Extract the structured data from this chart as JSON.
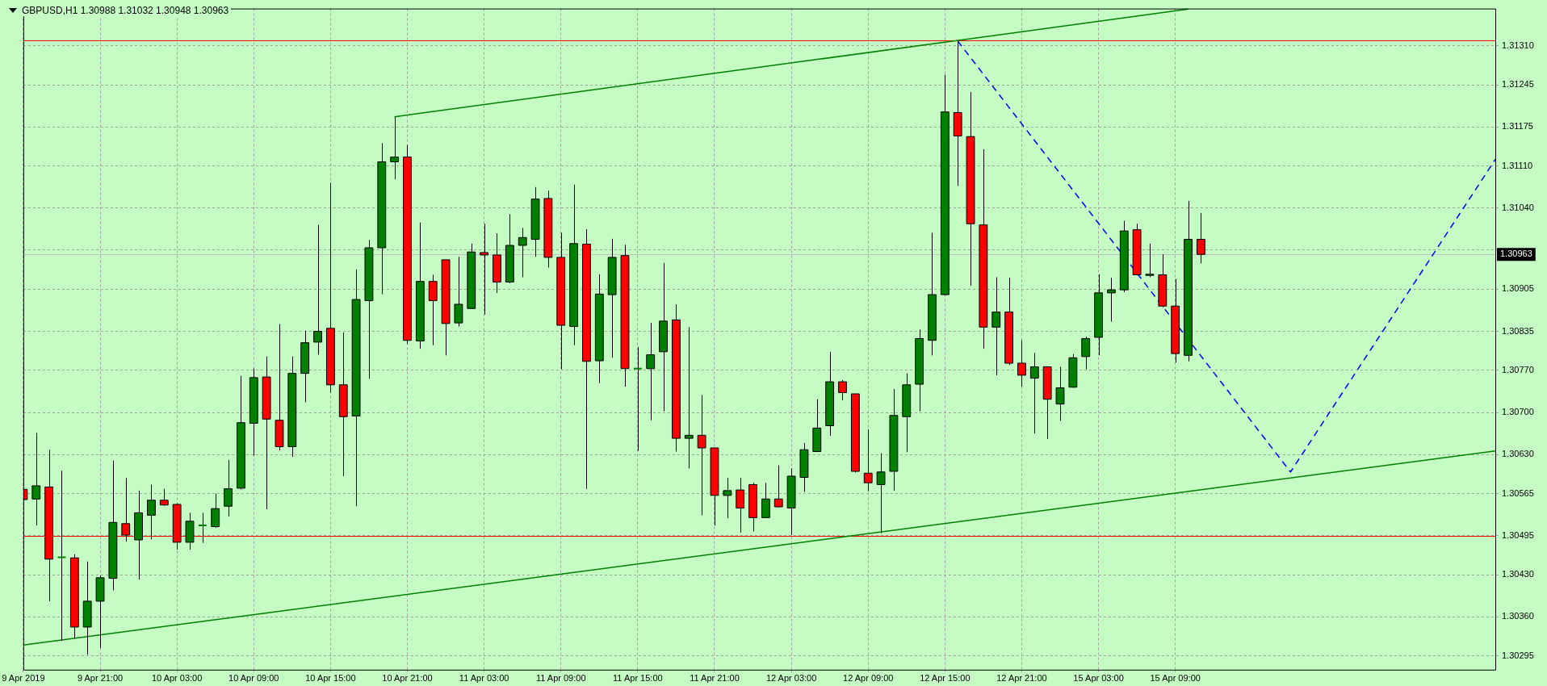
{
  "chart_data": {
    "type": "candlestick",
    "title": "GBPUSD,H1 1.30988 1.31032 1.30948 1.30963",
    "categories": [
      "9 Apr 2019",
      null,
      null,
      null,
      null,
      null,
      "9 Apr 21:00",
      null,
      null,
      null,
      null,
      null,
      "10 Apr 03:00",
      null,
      null,
      null,
      null,
      null,
      "10 Apr 09:00",
      null,
      null,
      null,
      null,
      null,
      "10 Apr 15:00",
      null,
      null,
      null,
      null,
      null,
      "10 Apr 21:00",
      null,
      null,
      null,
      null,
      null,
      "11 Apr 03:00",
      null,
      null,
      null,
      null,
      null,
      "11 Apr 09:00",
      null,
      null,
      null,
      null,
      null,
      "11 Apr 15:00",
      null,
      null,
      null,
      null,
      null,
      "11 Apr 21:00",
      null,
      null,
      null,
      null,
      null,
      "12 Apr 03:00",
      null,
      null,
      null,
      null,
      null,
      "12 Apr 09:00",
      null,
      null,
      null,
      null,
      null,
      "12 Apr 15:00",
      null,
      null,
      null,
      null,
      null,
      "12 Apr 21:00",
      null,
      null,
      null,
      null,
      null,
      "15 Apr 03:00",
      null,
      null,
      null,
      null,
      null,
      "15 Apr 09:00",
      null,
      null,
      null,
      null,
      null,
      null,
      null,
      null,
      null,
      null,
      null,
      null,
      null,
      null,
      null,
      null,
      null,
      null,
      null,
      null,
      null,
      null,
      null,
      null,
      null
    ],
    "ohlc": [
      [
        1.30572,
        1.30811,
        1.30423,
        1.30555
      ],
      [
        1.30556,
        1.30666,
        1.30512,
        1.30578
      ],
      [
        1.30576,
        1.30638,
        1.30386,
        1.30456
      ],
      [
        1.30459,
        1.30603,
        1.3032,
        1.30459
      ],
      [
        1.30458,
        1.30464,
        1.30324,
        1.30343
      ],
      [
        1.30343,
        1.30452,
        1.30297,
        1.30386
      ],
      [
        1.30386,
        1.30429,
        1.30308,
        1.30425
      ],
      [
        1.30424,
        1.3062,
        1.30404,
        1.30517
      ],
      [
        1.30515,
        1.30591,
        1.30485,
        1.30496
      ],
      [
        1.30488,
        1.3057,
        1.30422,
        1.30533
      ],
      [
        1.30529,
        1.3058,
        1.30489,
        1.30554
      ],
      [
        1.30554,
        1.30573,
        1.30545,
        1.30546
      ],
      [
        1.30547,
        1.30549,
        1.30472,
        1.30484
      ],
      [
        1.30484,
        1.30533,
        1.30472,
        1.30519
      ],
      [
        1.30512,
        1.30533,
        1.30483,
        1.30512
      ],
      [
        1.3051,
        1.30565,
        1.30508,
        1.3054
      ],
      [
        1.30544,
        1.30621,
        1.30527,
        1.30573
      ],
      [
        1.30574,
        1.30761,
        1.30572,
        1.30683
      ],
      [
        1.30682,
        1.30773,
        1.30628,
        1.30758
      ],
      [
        1.30759,
        1.30793,
        1.30539,
        1.30689
      ],
      [
        1.30687,
        1.30847,
        1.30637,
        1.30643
      ],
      [
        1.30643,
        1.30793,
        1.30626,
        1.30765
      ],
      [
        1.30765,
        1.30836,
        1.30717,
        1.30816
      ],
      [
        1.30817,
        1.31012,
        1.30796,
        1.30835
      ],
      [
        1.3084,
        1.31082,
        1.30733,
        1.30746
      ],
      [
        1.30746,
        1.30833,
        1.30594,
        1.30693
      ],
      [
        1.30694,
        1.30938,
        1.30544,
        1.30888
      ],
      [
        1.30886,
        1.30987,
        1.30756,
        1.30974
      ],
      [
        1.30974,
        1.31148,
        1.30897,
        1.31117
      ],
      [
        1.31117,
        1.31192,
        1.31088,
        1.31125
      ],
      [
        1.31125,
        1.31145,
        1.30814,
        1.3082
      ],
      [
        1.30819,
        1.31016,
        1.30806,
        1.30918
      ],
      [
        1.30918,
        1.30929,
        1.30812,
        1.30886
      ],
      [
        1.30954,
        1.30954,
        1.30795,
        1.30848
      ],
      [
        1.30849,
        1.30959,
        1.30843,
        1.3088
      ],
      [
        1.30873,
        1.30981,
        1.30872,
        1.30967
      ],
      [
        1.30966,
        1.31014,
        1.30863,
        1.30962
      ],
      [
        1.30962,
        1.30998,
        1.30899,
        1.30917
      ],
      [
        1.30917,
        1.3103,
        1.30915,
        1.30978
      ],
      [
        1.30978,
        1.31007,
        1.30925,
        1.30991
      ],
      [
        1.30988,
        1.31075,
        1.30959,
        1.31055
      ],
      [
        1.31056,
        1.31069,
        1.30941,
        1.30958
      ],
      [
        1.30958,
        1.30999,
        1.30772,
        1.30845
      ],
      [
        1.30843,
        1.31079,
        1.30812,
        1.30981
      ],
      [
        1.3098,
        1.31005,
        1.30573,
        1.30785
      ],
      [
        1.30786,
        1.3093,
        1.30749,
        1.30897
      ],
      [
        1.30896,
        1.30989,
        1.30791,
        1.30958
      ],
      [
        1.30961,
        1.30979,
        1.30743,
        1.30773
      ],
      [
        1.30773,
        1.30809,
        1.30636,
        1.30773
      ],
      [
        1.30773,
        1.30849,
        1.30687,
        1.30796
      ],
      [
        1.30801,
        1.30949,
        1.30702,
        1.30852
      ],
      [
        1.30854,
        1.3088,
        1.30635,
        1.30657
      ],
      [
        1.30657,
        1.30842,
        1.30607,
        1.30662
      ],
      [
        1.30662,
        1.30729,
        1.30529,
        1.30641
      ],
      [
        1.30641,
        1.30641,
        1.30512,
        1.30562
      ],
      [
        1.30562,
        1.30591,
        1.30524,
        1.3057
      ],
      [
        1.30571,
        1.30591,
        1.305,
        1.30541
      ],
      [
        1.3058,
        1.30583,
        1.30502,
        1.30525
      ],
      [
        1.30525,
        1.30583,
        1.30525,
        1.30556
      ],
      [
        1.30556,
        1.30612,
        1.30542,
        1.30543
      ],
      [
        1.30541,
        1.30607,
        1.30496,
        1.30594
      ],
      [
        1.30592,
        1.30649,
        1.30568,
        1.30638
      ],
      [
        1.30635,
        1.30722,
        1.30635,
        1.30674
      ],
      [
        1.30678,
        1.30801,
        1.30661,
        1.30751
      ],
      [
        1.30751,
        1.30754,
        1.3072,
        1.30733
      ],
      [
        1.30731,
        1.30731,
        1.306,
        1.30602
      ],
      [
        1.30599,
        1.30672,
        1.30569,
        1.30583
      ],
      [
        1.3058,
        1.30632,
        1.30499,
        1.30601
      ],
      [
        1.30602,
        1.30739,
        1.3057,
        1.30695
      ],
      [
        1.30693,
        1.30765,
        1.30634,
        1.30746
      ],
      [
        1.30747,
        1.30838,
        1.30702,
        1.30823
      ],
      [
        1.3082,
        1.30999,
        1.30795,
        1.30896
      ],
      [
        1.30896,
        1.31262,
        1.30895,
        1.312
      ],
      [
        1.31199,
        1.31318,
        1.31077,
        1.3116
      ],
      [
        1.31159,
        1.31233,
        1.30911,
        1.31014
      ],
      [
        1.31012,
        1.31138,
        1.30806,
        1.30842
      ],
      [
        1.30842,
        1.30925,
        1.30762,
        1.30867
      ],
      [
        1.30867,
        1.30924,
        1.30779,
        1.30782
      ],
      [
        1.30782,
        1.3082,
        1.30743,
        1.30762
      ],
      [
        1.30757,
        1.30799,
        1.30665,
        1.30776
      ],
      [
        1.30776,
        1.30776,
        1.30656,
        1.30722
      ],
      [
        1.30714,
        1.30776,
        1.30686,
        1.30741
      ],
      [
        1.30742,
        1.30797,
        1.30741,
        1.30791
      ],
      [
        1.30793,
        1.30826,
        1.30772,
        1.30823
      ],
      [
        1.30825,
        1.3093,
        1.30795,
        1.30899
      ],
      [
        1.30899,
        1.30924,
        1.30851,
        1.30904
      ],
      [
        1.30904,
        1.31019,
        1.309,
        1.31002
      ],
      [
        1.31004,
        1.31014,
        1.30928,
        1.30929
      ],
      [
        1.30928,
        1.30981,
        1.30925,
        1.3093
      ],
      [
        1.30929,
        1.30963,
        1.30875,
        1.30877
      ],
      [
        1.30877,
        1.30922,
        1.30783,
        1.30798
      ],
      [
        1.30795,
        1.31052,
        1.30785,
        1.30988
      ],
      [
        1.30988,
        1.31032,
        1.30948,
        1.30963
      ],
      null,
      null,
      null,
      null,
      null,
      null,
      null,
      null,
      null,
      null,
      null,
      null,
      null,
      null,
      null,
      null,
      null,
      null,
      null,
      null,
      null,
      null,
      null
    ],
    "colors": [
      "#ff0000",
      "#008000",
      "#ff0000",
      "#008000",
      "#ff0000",
      "#008000",
      "#008000",
      "#008000",
      "#ff0000",
      "#008000",
      "#008000",
      "#ff0000",
      "#ff0000",
      "#008000",
      "#008000",
      "#008000",
      "#008000",
      "#008000",
      "#008000",
      "#ff0000",
      "#ff0000",
      "#008000",
      "#008000",
      "#008000",
      "#ff0000",
      "#ff0000",
      "#008000",
      "#008000",
      "#008000",
      "#008000",
      "#ff0000",
      "#008000",
      "#ff0000",
      "#ff0000",
      "#008000",
      "#008000",
      "#ff0000",
      "#ff0000",
      "#008000",
      "#008000",
      "#008000",
      "#ff0000",
      "#ff0000",
      "#008000",
      "#ff0000",
      "#008000",
      "#008000",
      "#ff0000",
      "#008000",
      "#008000",
      "#008000",
      "#ff0000",
      "#008000",
      "#ff0000",
      "#ff0000",
      "#008000",
      "#ff0000",
      "#ff0000",
      "#008000",
      "#ff0000",
      "#008000",
      "#008000",
      "#008000",
      "#008000",
      "#ff0000",
      "#ff0000",
      "#ff0000",
      "#008000",
      "#008000",
      "#008000",
      "#008000",
      "#008000",
      "#008000",
      "#ff0000",
      "#ff0000",
      "#ff0000",
      "#008000",
      "#ff0000",
      "#ff0000",
      "#008000",
      "#ff0000",
      "#008000",
      "#008000",
      "#008000",
      "#008000",
      "#008000",
      "#008000",
      "#ff0000",
      "#008000",
      "#ff0000",
      "#ff0000",
      "#008000",
      "#ff0000",
      null,
      null,
      null,
      null,
      null,
      null,
      null,
      null,
      null,
      null,
      null,
      null,
      null,
      null,
      null,
      null,
      null,
      null,
      null,
      null,
      null,
      null,
      null
    ],
    "ylim": [
      1.30272,
      1.31372
    ],
    "yticks": [
      {
        "value": 1.30295,
        "label": "1.30295"
      },
      {
        "value": 1.3036,
        "label": "1.30360"
      },
      {
        "value": 1.3043,
        "label": "1.30430"
      },
      {
        "value": 1.30495,
        "label": "1.30495"
      },
      {
        "value": 1.30565,
        "label": "1.30565"
      },
      {
        "value": 1.3063,
        "label": "1.30630"
      },
      {
        "value": 1.307,
        "label": "1.30700"
      },
      {
        "value": 1.3077,
        "label": "1.30770"
      },
      {
        "value": 1.30835,
        "label": "1.30835"
      },
      {
        "value": 1.30905,
        "label": "1.30905"
      },
      {
        "value": 1.3097,
        "label": null
      },
      {
        "value": 1.3104,
        "label": "1.31040"
      },
      {
        "value": 1.3111,
        "label": "1.31110"
      },
      {
        "value": 1.31175,
        "label": "1.31175"
      },
      {
        "value": 1.31245,
        "label": "1.31245"
      },
      {
        "value": 1.3131,
        "label": "1.31310"
      }
    ],
    "grid": true,
    "ref_lines": [
      {
        "axis": "y",
        "value": 1.31319,
        "color": "#ff0000"
      },
      {
        "axis": "y",
        "value": 1.30494,
        "color": "#ff0000"
      },
      {
        "axis": "y",
        "value": 1.30963,
        "label": "1.30963",
        "color": "#c0c0c0"
      }
    ],
    "series": [
      {
        "type": "line",
        "color": "#008000",
        "values": [
          null,
          null,
          null,
          null,
          null,
          null,
          null,
          null,
          null,
          null,
          null,
          null,
          null,
          null,
          null,
          null,
          null,
          null,
          null,
          null,
          null,
          null,
          null,
          null,
          null,
          null,
          null,
          null,
          null,
          1.31192,
          null,
          null,
          null,
          null,
          null,
          null,
          null,
          null,
          null,
          null,
          null,
          null,
          null,
          null,
          null,
          null,
          null,
          null,
          null,
          null,
          null,
          null,
          null,
          null,
          null,
          null,
          null,
          null,
          null,
          null,
          null,
          null,
          null,
          null,
          null,
          null,
          null,
          null,
          null,
          null,
          null,
          null,
          null,
          null,
          null,
          null,
          null,
          null,
          null,
          null,
          null,
          null,
          null,
          null,
          null,
          null,
          null,
          null,
          null,
          null,
          null,
          1.31371,
          null,
          null,
          null,
          null,
          null,
          null,
          null,
          null,
          null,
          null,
          null,
          null,
          null,
          null,
          null,
          null,
          null,
          null,
          null,
          null,
          null,
          null,
          null,
          null
        ]
      },
      {
        "type": "line",
        "color": "#008000",
        "values": [
          1.30313,
          null,
          null,
          null,
          null,
          null,
          null,
          null,
          null,
          null,
          null,
          null,
          null,
          null,
          null,
          null,
          null,
          null,
          null,
          null,
          null,
          null,
          null,
          null,
          null,
          null,
          null,
          null,
          null,
          null,
          null,
          null,
          null,
          null,
          null,
          null,
          null,
          null,
          null,
          null,
          null,
          null,
          null,
          null,
          null,
          null,
          null,
          null,
          null,
          null,
          null,
          null,
          null,
          null,
          null,
          null,
          null,
          null,
          null,
          null,
          null,
          null,
          null,
          null,
          null,
          null,
          null,
          null,
          null,
          null,
          null,
          null,
          null,
          null,
          null,
          null,
          null,
          null,
          null,
          null,
          null,
          null,
          null,
          null,
          null,
          null,
          null,
          null,
          null,
          null,
          null,
          null,
          null,
          null,
          null,
          null,
          null,
          null,
          null,
          null,
          null,
          null,
          null,
          null,
          null,
          null,
          null,
          null,
          null,
          null,
          null,
          null,
          null,
          null,
          null,
          1.30636
        ]
      },
      {
        "type": "line",
        "color": "#0000ff",
        "line_style": "dashed",
        "values": [
          null,
          null,
          null,
          null,
          null,
          null,
          null,
          null,
          null,
          null,
          null,
          null,
          null,
          null,
          null,
          null,
          null,
          null,
          null,
          null,
          null,
          null,
          null,
          null,
          null,
          null,
          null,
          null,
          null,
          null,
          null,
          null,
          null,
          null,
          null,
          null,
          null,
          null,
          null,
          null,
          null,
          null,
          null,
          null,
          null,
          null,
          null,
          null,
          null,
          null,
          null,
          null,
          null,
          null,
          null,
          null,
          null,
          null,
          null,
          null,
          null,
          null,
          null,
          null,
          null,
          null,
          null,
          null,
          null,
          null,
          null,
          null,
          null,
          1.31318,
          null,
          null,
          null,
          null,
          null,
          null,
          null,
          null,
          null,
          null,
          null,
          null,
          null,
          null,
          null,
          null,
          null,
          null,
          null,
          null,
          null,
          null,
          null,
          null,
          null,
          1.30601,
          null,
          null,
          null,
          null,
          null,
          null,
          null,
          null,
          null,
          null,
          null,
          null,
          null,
          null,
          null,
          1.31121
        ]
      }
    ]
  }
}
